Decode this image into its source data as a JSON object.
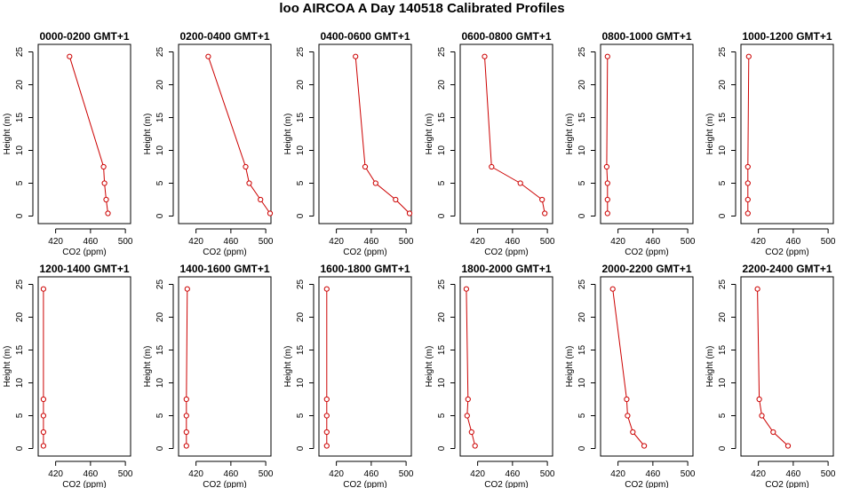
{
  "title": "loo AIRCOA A  Day 140518  Calibrated Profiles",
  "colors": {
    "line": "#cc0000",
    "axis": "#000000",
    "background": "#ffffff"
  },
  "chart_data": [
    {
      "type": "line",
      "title": "0000-0200 GMT+1",
      "xlabel": "CO2 (ppm)",
      "ylabel": "Height (m)",
      "xlim": [
        400,
        506
      ],
      "ylim": [
        0,
        25
      ],
      "xticks": [
        420,
        460,
        500
      ],
      "yticks": [
        0,
        5,
        10,
        15,
        20,
        25
      ],
      "grid": false,
      "series": [
        {
          "x": [
            436,
            475,
            476,
            478,
            480
          ],
          "y": [
            24.3,
            7.5,
            5.0,
            2.5,
            0.4
          ]
        }
      ]
    },
    {
      "type": "line",
      "title": "0200-0400 GMT+1",
      "xlabel": "CO2 (ppm)",
      "ylabel": "Height (m)",
      "xlim": [
        400,
        506
      ],
      "ylim": [
        0,
        25
      ],
      "xticks": [
        420,
        460,
        500
      ],
      "yticks": [
        0,
        5,
        10,
        15,
        20,
        25
      ],
      "grid": false,
      "series": [
        {
          "x": [
            434,
            477,
            481,
            494,
            505
          ],
          "y": [
            24.3,
            7.5,
            5.0,
            2.5,
            0.4
          ]
        }
      ]
    },
    {
      "type": "line",
      "title": "0400-0600 GMT+1",
      "xlabel": "CO2 (ppm)",
      "ylabel": "Height (m)",
      "xlim": [
        400,
        506
      ],
      "ylim": [
        0,
        25
      ],
      "xticks": [
        420,
        460,
        500
      ],
      "yticks": [
        0,
        5,
        10,
        15,
        20,
        25
      ],
      "grid": false,
      "series": [
        {
          "x": [
            442,
            453,
            465,
            488,
            504
          ],
          "y": [
            24.3,
            7.5,
            5.0,
            2.5,
            0.4
          ]
        }
      ]
    },
    {
      "type": "line",
      "title": "0600-0800 GMT+1",
      "xlabel": "CO2 (ppm)",
      "ylabel": "Height (m)",
      "xlim": [
        400,
        506
      ],
      "ylim": [
        0,
        25
      ],
      "xticks": [
        420,
        460,
        500
      ],
      "yticks": [
        0,
        5,
        10,
        15,
        20,
        25
      ],
      "grid": false,
      "series": [
        {
          "x": [
            428,
            436,
            469,
            494,
            497
          ],
          "y": [
            24.3,
            7.5,
            5.0,
            2.5,
            0.4
          ]
        }
      ]
    },
    {
      "type": "line",
      "title": "0800-1000 GMT+1",
      "xlabel": "CO2 (ppm)",
      "ylabel": "Height (m)",
      "xlim": [
        400,
        506
      ],
      "ylim": [
        0,
        25
      ],
      "xticks": [
        420,
        460,
        500
      ],
      "yticks": [
        0,
        5,
        10,
        15,
        20,
        25
      ],
      "grid": false,
      "series": [
        {
          "x": [
            408,
            407,
            408,
            408,
            408
          ],
          "y": [
            24.3,
            7.5,
            5.0,
            2.5,
            0.4
          ]
        }
      ]
    },
    {
      "type": "line",
      "title": "1000-1200 GMT+1",
      "xlabel": "CO2 (ppm)",
      "ylabel": "Height (m)",
      "xlim": [
        400,
        506
      ],
      "ylim": [
        0,
        25
      ],
      "xticks": [
        420,
        460,
        500
      ],
      "yticks": [
        0,
        5,
        10,
        15,
        20,
        25
      ],
      "grid": false,
      "series": [
        {
          "x": [
            409,
            408,
            408,
            408,
            408
          ],
          "y": [
            24.3,
            7.5,
            5.0,
            2.5,
            0.4
          ]
        }
      ]
    },
    {
      "type": "line",
      "title": "1200-1400 GMT+1",
      "xlabel": "CO2 (ppm)",
      "ylabel": "Height (m)",
      "xlim": [
        400,
        506
      ],
      "ylim": [
        0,
        25
      ],
      "xticks": [
        420,
        460,
        500
      ],
      "yticks": [
        0,
        5,
        10,
        15,
        20,
        25
      ],
      "grid": false,
      "series": [
        {
          "x": [
            406,
            406,
            406,
            406,
            406
          ],
          "y": [
            24.3,
            7.5,
            5.0,
            2.5,
            0.4
          ]
        }
      ]
    },
    {
      "type": "line",
      "title": "1400-1600 GMT+1",
      "xlabel": "CO2 (ppm)",
      "ylabel": "Height (m)",
      "xlim": [
        400,
        506
      ],
      "ylim": [
        0,
        25
      ],
      "xticks": [
        420,
        460,
        500
      ],
      "yticks": [
        0,
        5,
        10,
        15,
        20,
        25
      ],
      "grid": false,
      "series": [
        {
          "x": [
            410,
            409,
            409,
            409,
            409
          ],
          "y": [
            24.3,
            7.5,
            5.0,
            2.5,
            0.4
          ]
        }
      ]
    },
    {
      "type": "line",
      "title": "1600-1800 GMT+1",
      "xlabel": "CO2 (ppm)",
      "ylabel": "Height (m)",
      "xlim": [
        400,
        506
      ],
      "ylim": [
        0,
        25
      ],
      "xticks": [
        420,
        460,
        500
      ],
      "yticks": [
        0,
        5,
        10,
        15,
        20,
        25
      ],
      "grid": false,
      "series": [
        {
          "x": [
            409,
            409,
            409,
            409,
            409
          ],
          "y": [
            24.3,
            7.5,
            5.0,
            2.5,
            0.4
          ]
        }
      ]
    },
    {
      "type": "line",
      "title": "1800-2000 GMT+1",
      "xlabel": "CO2 (ppm)",
      "ylabel": "Height (m)",
      "xlim": [
        400,
        506
      ],
      "ylim": [
        0,
        25
      ],
      "xticks": [
        420,
        460,
        500
      ],
      "yticks": [
        0,
        5,
        10,
        15,
        20,
        25
      ],
      "grid": false,
      "series": [
        {
          "x": [
            407,
            409,
            408,
            413,
            417
          ],
          "y": [
            24.3,
            7.5,
            5.0,
            2.5,
            0.4
          ]
        }
      ]
    },
    {
      "type": "line",
      "title": "2000-2200 GMT+1",
      "xlabel": "CO2 (ppm)",
      "ylabel": "Height (m)",
      "xlim": [
        400,
        506
      ],
      "ylim": [
        0,
        25
      ],
      "xticks": [
        420,
        460,
        500
      ],
      "yticks": [
        0,
        5,
        10,
        15,
        20,
        25
      ],
      "grid": false,
      "series": [
        {
          "x": [
            414,
            430,
            431,
            437,
            450
          ],
          "y": [
            24.3,
            7.5,
            5.0,
            2.5,
            0.4
          ]
        }
      ]
    },
    {
      "type": "line",
      "title": "2200-2400 GMT+1",
      "xlabel": "CO2 (ppm)",
      "ylabel": "Height (m)",
      "xlim": [
        400,
        506
      ],
      "ylim": [
        0,
        25
      ],
      "xticks": [
        420,
        460,
        500
      ],
      "yticks": [
        0,
        5,
        10,
        15,
        20,
        25
      ],
      "grid": false,
      "series": [
        {
          "x": [
            419,
            421,
            424,
            437,
            454
          ],
          "y": [
            24.3,
            7.5,
            5.0,
            2.5,
            0.4
          ]
        }
      ]
    }
  ]
}
